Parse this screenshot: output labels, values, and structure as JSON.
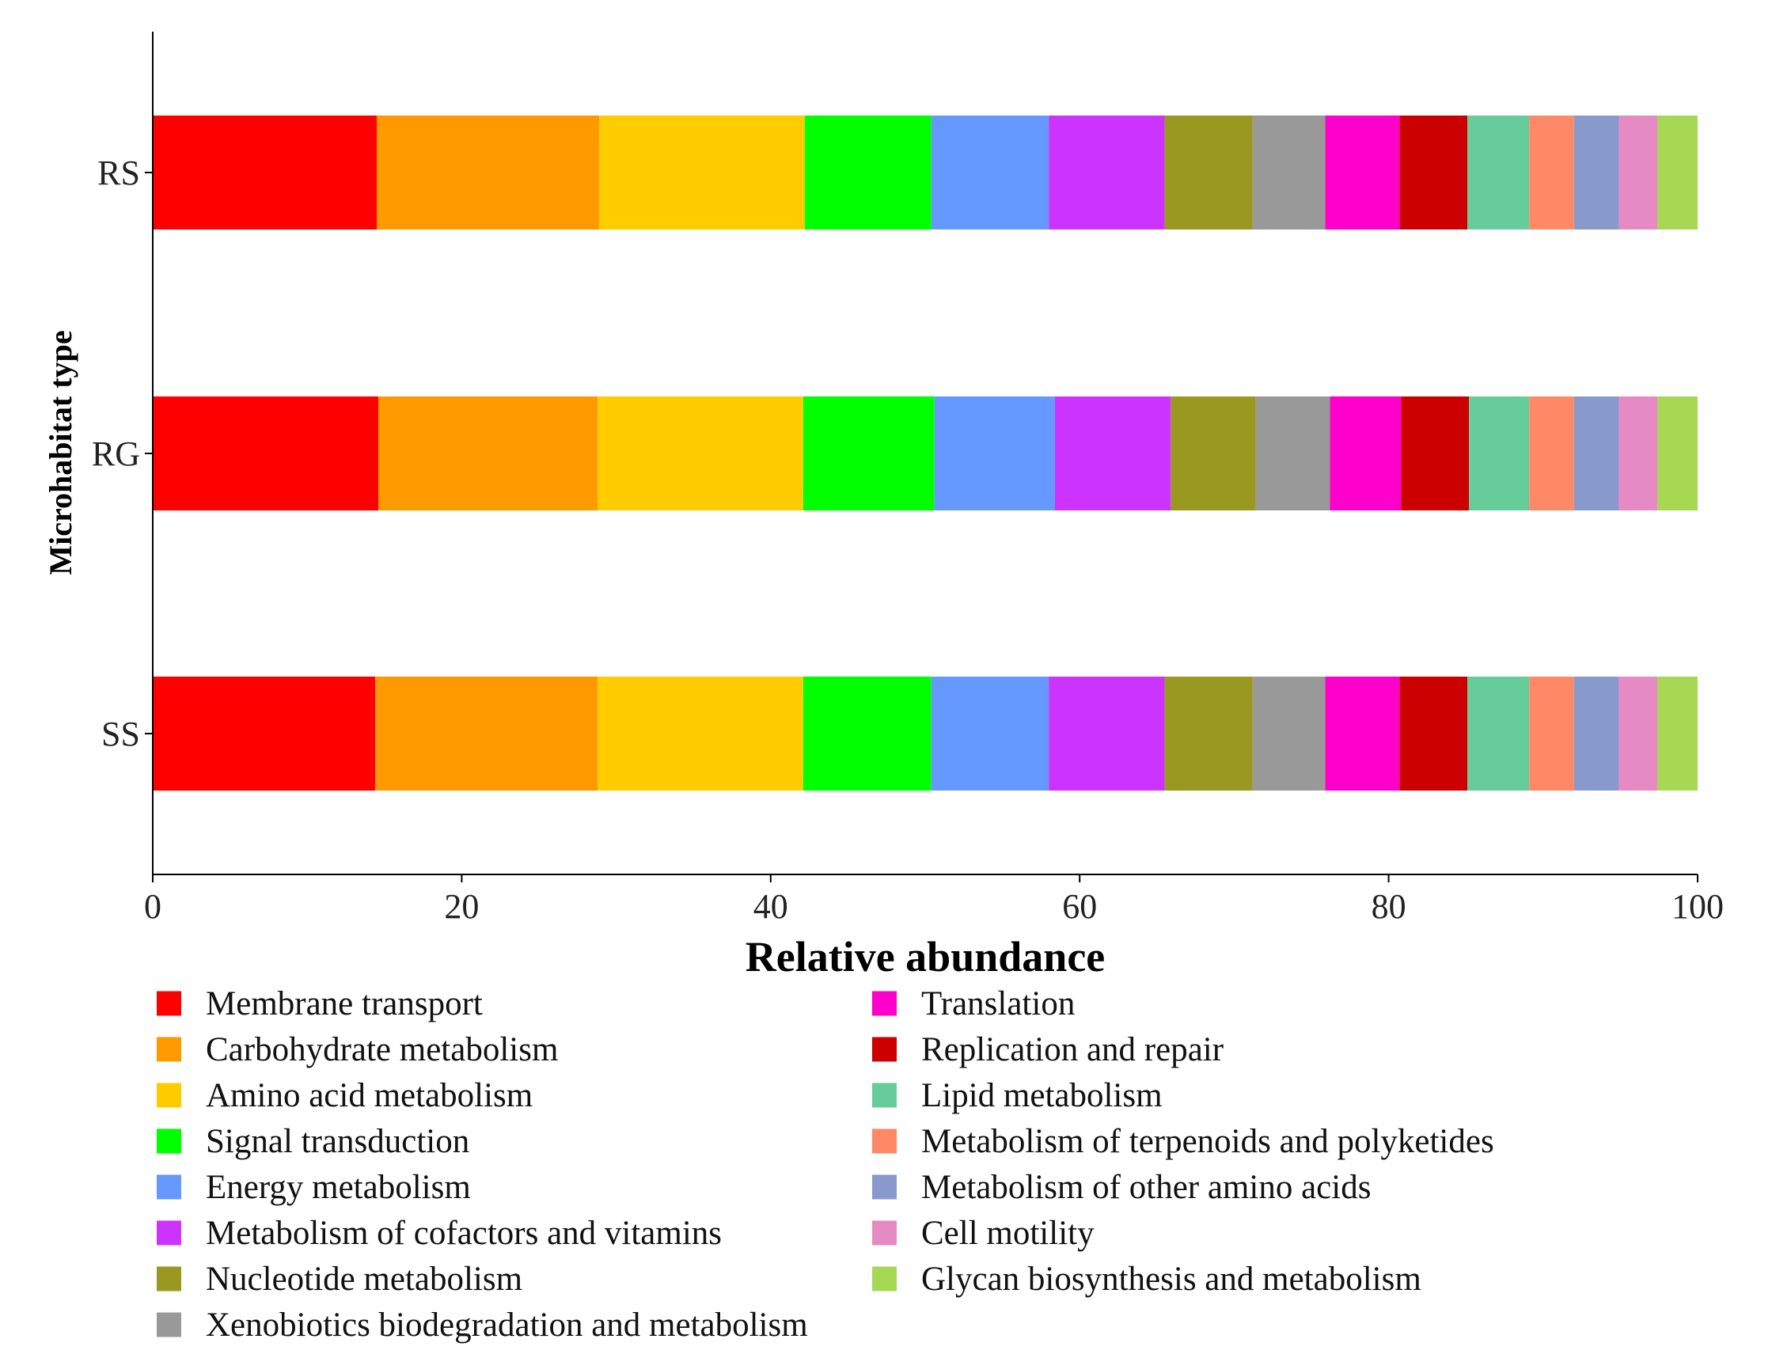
{
  "chart_data": {
    "type": "bar",
    "orientation": "horizontal",
    "stacked": true,
    "xlabel": "Relative abundance",
    "ylabel": "Microhabitat type",
    "xlim": [
      0,
      100
    ],
    "xticks": [
      "0",
      "20",
      "40",
      "60",
      "80",
      "100"
    ],
    "categories": [
      "RS",
      "RG",
      "SS"
    ],
    "legend_position": "bottom",
    "grid": false,
    "series": [
      {
        "name": "Membrane transport",
        "color": "#ff0000",
        "values": [
          14.5,
          14.6,
          14.4
        ]
      },
      {
        "name": "Carbohydrate metabolism",
        "color": "#ff9900",
        "values": [
          14.4,
          14.2,
          14.4
        ]
      },
      {
        "name": "Amino acid metabolism",
        "color": "#ffcc00",
        "values": [
          13.3,
          13.3,
          13.3
        ]
      },
      {
        "name": "Signal transduction",
        "color": "#00ff00",
        "values": [
          8.2,
          8.5,
          8.3
        ]
      },
      {
        "name": "Energy metabolism",
        "color": "#6699ff",
        "values": [
          7.6,
          7.8,
          7.6
        ]
      },
      {
        "name": "Metabolism of cofactors and vitamins",
        "color": "#cc33ff",
        "values": [
          7.5,
          7.5,
          7.5
        ]
      },
      {
        "name": "Nucleotide metabolism",
        "color": "#999922",
        "values": [
          5.7,
          5.5,
          5.7
        ]
      },
      {
        "name": "Xenobiotics biodegradation and metabolism",
        "color": "#999999",
        "values": [
          4.7,
          4.8,
          4.7
        ]
      },
      {
        "name": "Translation",
        "color": "#ff00cc",
        "values": [
          4.8,
          4.6,
          4.8
        ]
      },
      {
        "name": "Replication and repair",
        "color": "#cc0000",
        "values": [
          4.4,
          4.4,
          4.4
        ]
      },
      {
        "name": "Lipid metabolism",
        "color": "#66cc99",
        "values": [
          4.0,
          3.9,
          4.0
        ]
      },
      {
        "name": "Metabolism of terpenoids and polyketides",
        "color": "#ff8866",
        "values": [
          2.9,
          2.9,
          2.9
        ]
      },
      {
        "name": "Metabolism of other amino acids",
        "color": "#8899cc",
        "values": [
          2.9,
          2.9,
          2.9
        ]
      },
      {
        "name": "Cell motility",
        "color": "#e68ac3",
        "values": [
          2.5,
          2.5,
          2.5
        ]
      },
      {
        "name": "Glycan biosynthesis and metabolism",
        "color": "#a6d854",
        "values": [
          2.6,
          2.6,
          2.6
        ]
      }
    ]
  }
}
